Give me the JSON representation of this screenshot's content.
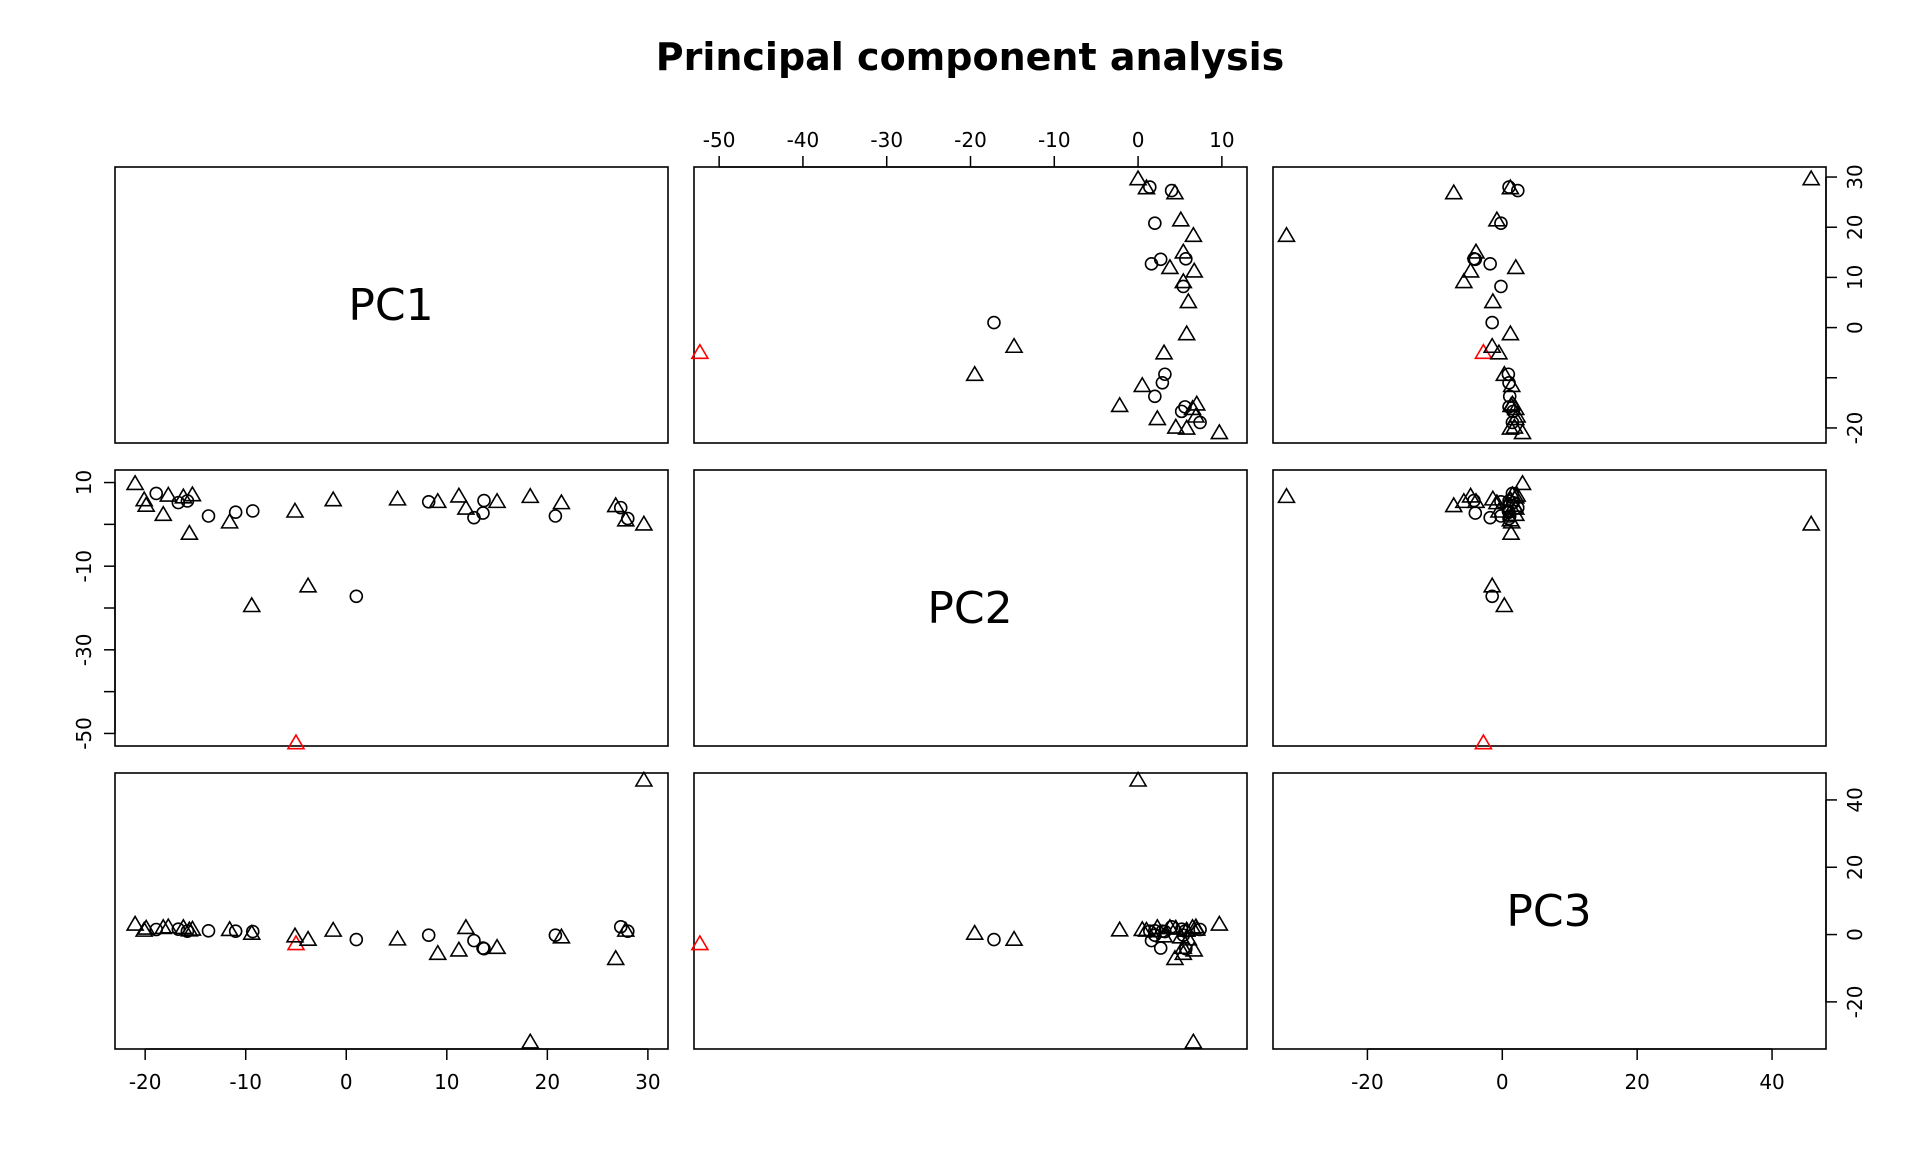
{
  "chart_data": {
    "type": "scatter",
    "title": "Principal component analysis",
    "variables": [
      "PC1",
      "PC2",
      "PC3"
    ],
    "ranges": {
      "PC1": [
        -23,
        32
      ],
      "PC2": [
        -53,
        13
      ],
      "PC3": [
        -34,
        48
      ]
    },
    "ticks": {
      "PC1": [
        -20,
        -10,
        0,
        10,
        20,
        30
      ],
      "PC2": [
        -50,
        -40,
        -30,
        -20,
        -10,
        0,
        10
      ],
      "PC3": [
        -20,
        0,
        20,
        40
      ]
    },
    "tick_labels": {
      "PC1": [
        "-20",
        "-10",
        "0",
        "10",
        "20",
        "30"
      ],
      "PC2_top": [
        "-50",
        "-40",
        "-30",
        "-20",
        "-10",
        "0",
        "10"
      ],
      "PC2_left": [
        "10",
        "-10",
        "-30",
        "-50"
      ],
      "PC2_left_values": [
        10,
        -10,
        -30,
        -50
      ],
      "PC3_bottom": [
        "-20",
        "0",
        "20",
        "40"
      ],
      "PC3_right": [
        "-20",
        "0",
        "20",
        "40"
      ],
      "PC1_right": [
        "30",
        "20",
        "10",
        "0",
        "",
        "-20"
      ]
    },
    "marker_colors": {
      "default": "#000000",
      "highlight": "#ff0000"
    },
    "points": [
      {
        "pc1": -21.0,
        "pc2": 9.7,
        "pc3": 3.0,
        "shape": "triangle"
      },
      {
        "pc1": -20.1,
        "pc2": 5.8,
        "pc3": 1.2,
        "shape": "triangle"
      },
      {
        "pc1": -19.9,
        "pc2": 4.5,
        "pc3": 1.8,
        "shape": "triangle"
      },
      {
        "pc1": -18.9,
        "pc2": 7.4,
        "pc3": 1.5,
        "shape": "circle"
      },
      {
        "pc1": -18.2,
        "pc2": 2.3,
        "pc3": 2.0,
        "shape": "triangle"
      },
      {
        "pc1": -17.7,
        "pc2": 6.9,
        "pc3": 2.2,
        "shape": "triangle"
      },
      {
        "pc1": -16.7,
        "pc2": 5.2,
        "pc3": 1.6,
        "shape": "circle"
      },
      {
        "pc1": -16.2,
        "pc2": 6.5,
        "pc3": 2.0,
        "shape": "triangle"
      },
      {
        "pc1": -15.8,
        "pc2": 5.6,
        "pc3": 1.0,
        "shape": "circle"
      },
      {
        "pc1": -15.6,
        "pc2": -2.2,
        "pc3": 1.3,
        "shape": "triangle"
      },
      {
        "pc1": -15.3,
        "pc2": 7.0,
        "pc3": 1.5,
        "shape": "triangle"
      },
      {
        "pc1": -13.7,
        "pc2": 2.0,
        "pc3": 1.1,
        "shape": "circle"
      },
      {
        "pc1": -11.6,
        "pc2": 0.5,
        "pc3": 1.4,
        "shape": "triangle"
      },
      {
        "pc1": -11.0,
        "pc2": 2.9,
        "pc3": 1.0,
        "shape": "circle"
      },
      {
        "pc1": -9.4,
        "pc2": -19.5,
        "pc3": 0.3,
        "shape": "triangle"
      },
      {
        "pc1": -9.3,
        "pc2": 3.2,
        "pc3": 0.9,
        "shape": "circle"
      },
      {
        "pc1": -5.0,
        "pc2": -52.3,
        "pc3": -2.8,
        "shape": "triangle",
        "highlight": true
      },
      {
        "pc1": -5.1,
        "pc2": 3.1,
        "pc3": -0.5,
        "shape": "triangle"
      },
      {
        "pc1": -3.8,
        "pc2": -14.8,
        "pc3": -1.5,
        "shape": "triangle"
      },
      {
        "pc1": -1.3,
        "pc2": 5.8,
        "pc3": 1.2,
        "shape": "triangle"
      },
      {
        "pc1": 1.0,
        "pc2": -17.2,
        "pc3": -1.5,
        "shape": "circle"
      },
      {
        "pc1": 5.1,
        "pc2": 6.0,
        "pc3": -1.4,
        "shape": "triangle"
      },
      {
        "pc1": 8.2,
        "pc2": 5.4,
        "pc3": -0.2,
        "shape": "circle"
      },
      {
        "pc1": 9.1,
        "pc2": 5.4,
        "pc3": -5.7,
        "shape": "triangle"
      },
      {
        "pc1": 11.2,
        "pc2": 6.7,
        "pc3": -4.7,
        "shape": "triangle"
      },
      {
        "pc1": 11.9,
        "pc2": 3.8,
        "pc3": 2.0,
        "shape": "triangle"
      },
      {
        "pc1": 12.7,
        "pc2": 1.6,
        "pc3": -1.8,
        "shape": "circle"
      },
      {
        "pc1": 13.6,
        "pc2": 2.7,
        "pc3": -4.0,
        "shape": "circle"
      },
      {
        "pc1": 13.7,
        "pc2": 5.7,
        "pc3": -4.2,
        "shape": "circle"
      },
      {
        "pc1": 15.0,
        "pc2": 5.4,
        "pc3": -3.9,
        "shape": "triangle"
      },
      {
        "pc1": 18.3,
        "pc2": 6.6,
        "pc3": -32.0,
        "shape": "triangle"
      },
      {
        "pc1": 20.8,
        "pc2": 2.0,
        "pc3": -0.2,
        "shape": "circle"
      },
      {
        "pc1": 21.4,
        "pc2": 5.1,
        "pc3": -0.8,
        "shape": "triangle"
      },
      {
        "pc1": 26.8,
        "pc2": 4.4,
        "pc3": -7.2,
        "shape": "triangle"
      },
      {
        "pc1": 27.3,
        "pc2": 4.0,
        "pc3": 2.3,
        "shape": "circle"
      },
      {
        "pc1": 27.8,
        "pc2": 1.0,
        "pc3": 1.2,
        "shape": "triangle"
      },
      {
        "pc1": 28.0,
        "pc2": 1.4,
        "pc3": 1.0,
        "shape": "circle"
      },
      {
        "pc1": 29.6,
        "pc2": 0.0,
        "pc3": 45.8,
        "shape": "triangle"
      }
    ]
  }
}
